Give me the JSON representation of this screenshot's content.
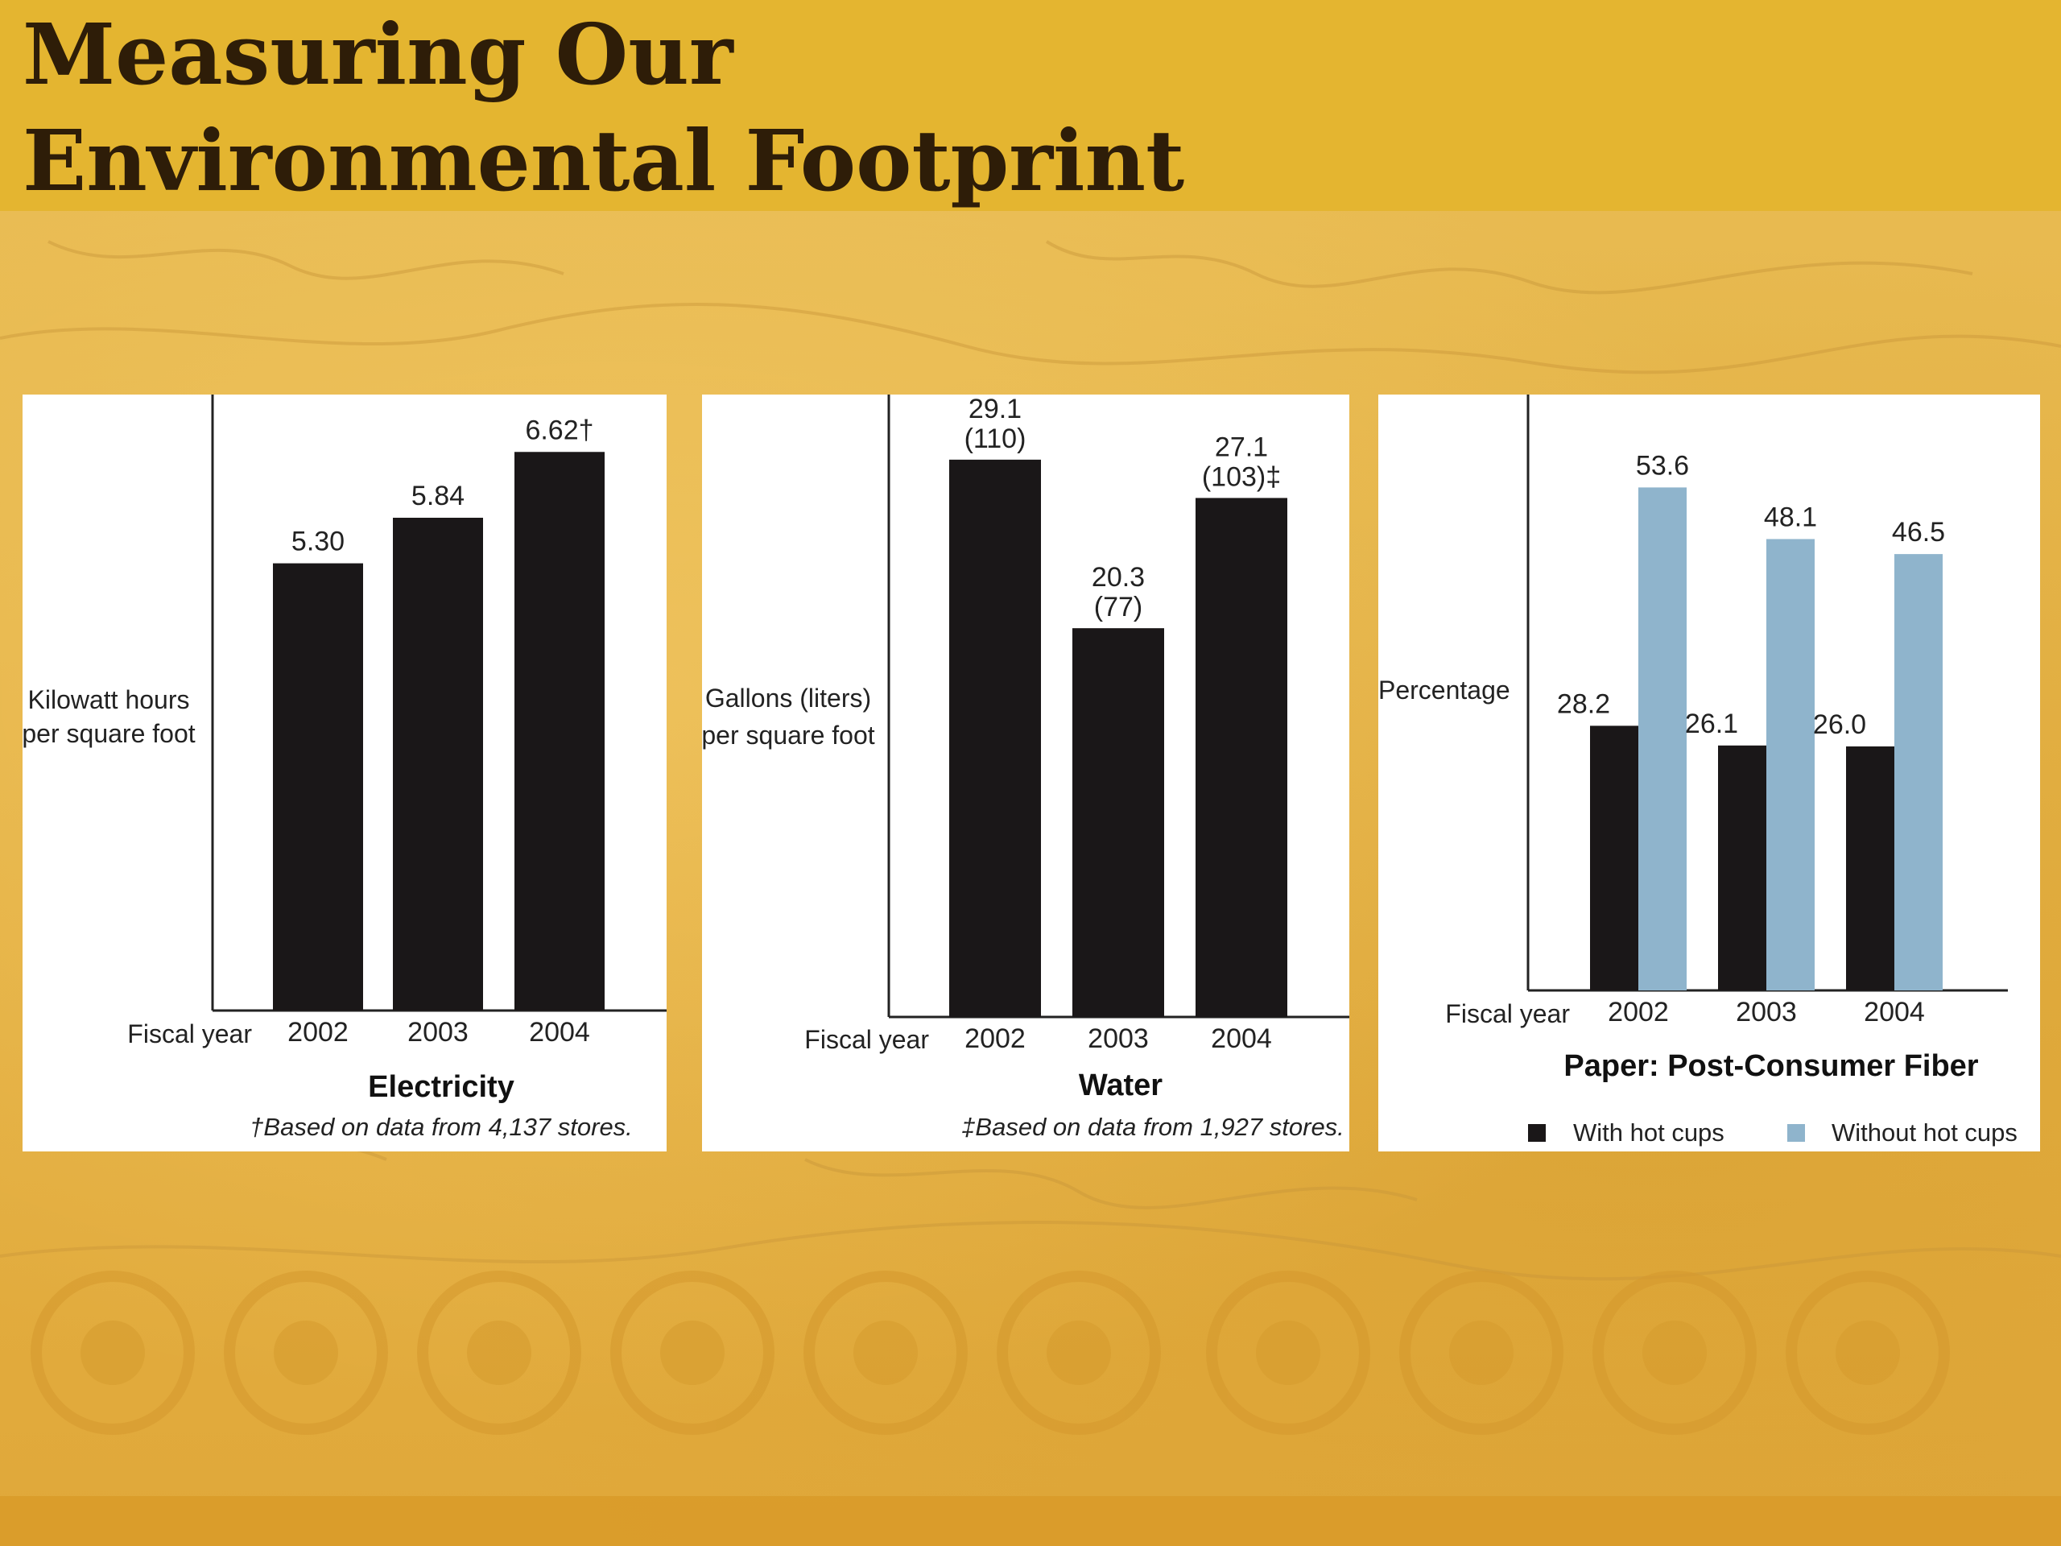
{
  "slide": {
    "title_line1": "Measuring Our",
    "title_line2": "Environmental Footprint"
  },
  "colors": {
    "bar_dark": "#1a1718",
    "bar_light": "#8fb4cc",
    "title_band": "#e4b530",
    "title_text": "#2e1d08"
  },
  "chart_data": [
    {
      "type": "bar",
      "title": "Electricity",
      "ylabel_line1": "Kilowatt hours",
      "ylabel_line2": "per square foot",
      "xlabel": "Fiscal year",
      "categories": [
        "2002",
        "2003",
        "2004"
      ],
      "values": [
        5.3,
        5.84,
        6.62
      ],
      "labels": [
        "5.30",
        "5.84",
        "6.62†"
      ],
      "ylim": [
        0,
        7.3
      ],
      "footnote": "†Based on data from 4,137 stores.",
      "grid": false
    },
    {
      "type": "bar",
      "title": "Water",
      "ylabel_line1": "Gallons (liters)",
      "ylabel_line2": "per square foot",
      "xlabel": "Fiscal year",
      "categories": [
        "2002",
        "2003",
        "2004"
      ],
      "values": [
        29.1,
        20.3,
        27.1
      ],
      "labels_line1": [
        "29.1",
        "20.3",
        "27.1"
      ],
      "labels_line2": [
        "(110)",
        "(77)",
        "(103)‡"
      ],
      "ylim": [
        0,
        32.5
      ],
      "footnote": "‡Based on data from 1,927 stores.",
      "grid": false
    },
    {
      "type": "bar",
      "title": "Paper: Post-Consumer Fiber",
      "ylabel": "Percentage",
      "xlabel": "Fiscal year",
      "categories": [
        "2002",
        "2003",
        "2004"
      ],
      "series": [
        {
          "name": "With hot cups",
          "values": [
            28.2,
            26.1,
            26.0
          ],
          "labels": [
            "28.2",
            "26.1",
            "26.0"
          ]
        },
        {
          "name": "Without hot cups",
          "values": [
            53.6,
            48.1,
            46.5
          ],
          "labels": [
            "53.6",
            "48.1",
            "46.5"
          ]
        }
      ],
      "ylim": [
        0,
        63.5
      ],
      "legend_position": "bottom",
      "grid": false
    }
  ]
}
